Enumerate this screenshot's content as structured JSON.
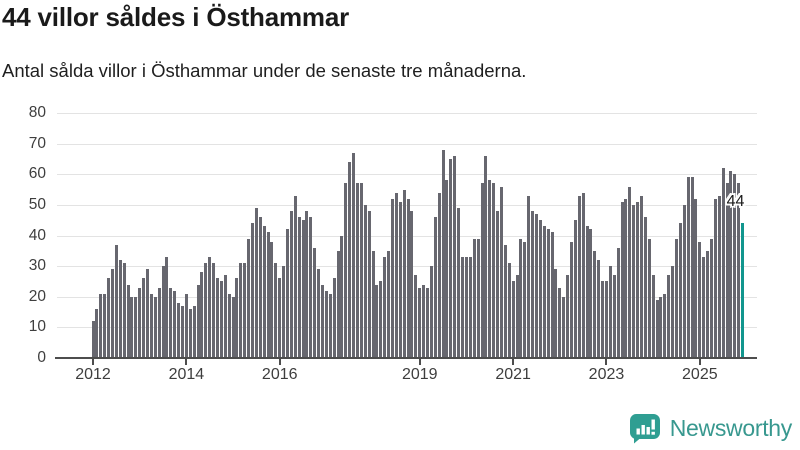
{
  "header": {
    "title": "44 villor såldes i Östhammar",
    "subtitle": "Antal sålda villor i Östhammar under de senaste tre månaderna."
  },
  "chart_data": {
    "type": "bar",
    "title": "44 villor såldes i Östhammar",
    "subtitle": "Antal sålda villor i Östhammar under de senaste tre månaderna.",
    "unit": "antal sålda villor (rullande tre månader)",
    "frequency": "monthly",
    "start": "2012-01",
    "values": [
      12,
      16,
      21,
      21,
      26,
      29,
      37,
      32,
      31,
      24,
      20,
      20,
      23,
      26,
      29,
      21,
      20,
      23,
      30,
      33,
      23,
      22,
      18,
      17,
      21,
      16,
      17,
      24,
      28,
      31,
      33,
      31,
      26,
      25,
      27,
      21,
      20,
      26,
      31,
      31,
      39,
      44,
      49,
      46,
      43,
      41,
      38,
      31,
      26,
      30,
      42,
      48,
      53,
      46,
      45,
      48,
      46,
      36,
      29,
      24,
      22,
      21,
      26,
      35,
      40,
      57,
      64,
      67,
      57,
      57,
      50,
      48,
      35,
      24,
      25,
      33,
      35,
      52,
      54,
      51,
      55,
      52,
      48,
      27,
      23,
      24,
      23,
      30,
      46,
      54,
      68,
      58,
      65,
      66,
      49,
      33,
      33,
      33,
      39,
      39,
      57,
      66,
      58,
      57,
      48,
      56,
      37,
      31,
      25,
      27,
      39,
      38,
      53,
      48,
      47,
      45,
      43,
      42,
      41,
      29,
      23,
      20,
      27,
      38,
      45,
      53,
      54,
      43,
      42,
      35,
      32,
      25,
      25,
      30,
      27,
      36,
      51,
      52,
      56,
      50,
      51,
      53,
      46,
      39,
      27,
      19,
      20,
      21,
      27,
      30,
      39,
      44,
      50,
      59,
      59,
      52,
      38,
      33,
      35,
      39,
      52,
      53,
      62,
      57,
      61,
      60,
      57,
      44
    ],
    "highlight": {
      "index": 167,
      "value": 44,
      "label": "44"
    },
    "x_ticks": [
      {
        "label": "2012",
        "month_index": 0
      },
      {
        "label": "2014",
        "month_index": 24
      },
      {
        "label": "2016",
        "month_index": 48
      },
      {
        "label": "2019",
        "month_index": 84
      },
      {
        "label": "2021",
        "month_index": 108
      },
      {
        "label": "2023",
        "month_index": 132
      },
      {
        "label": "2025",
        "month_index": 156
      }
    ],
    "y_ticks": [
      0,
      10,
      20,
      30,
      40,
      50,
      60,
      70,
      80
    ],
    "ylim": [
      0,
      80
    ],
    "grid": "horizontal",
    "legend": "none",
    "bar_color": "#67676f",
    "highlight_color": "#11968e"
  },
  "footer": {
    "brand": "Newsworthy",
    "brand_color": "#38988f",
    "icon": "newsworthy-bar-chart-bubble-icon",
    "icon_color": "#2f9e92"
  }
}
